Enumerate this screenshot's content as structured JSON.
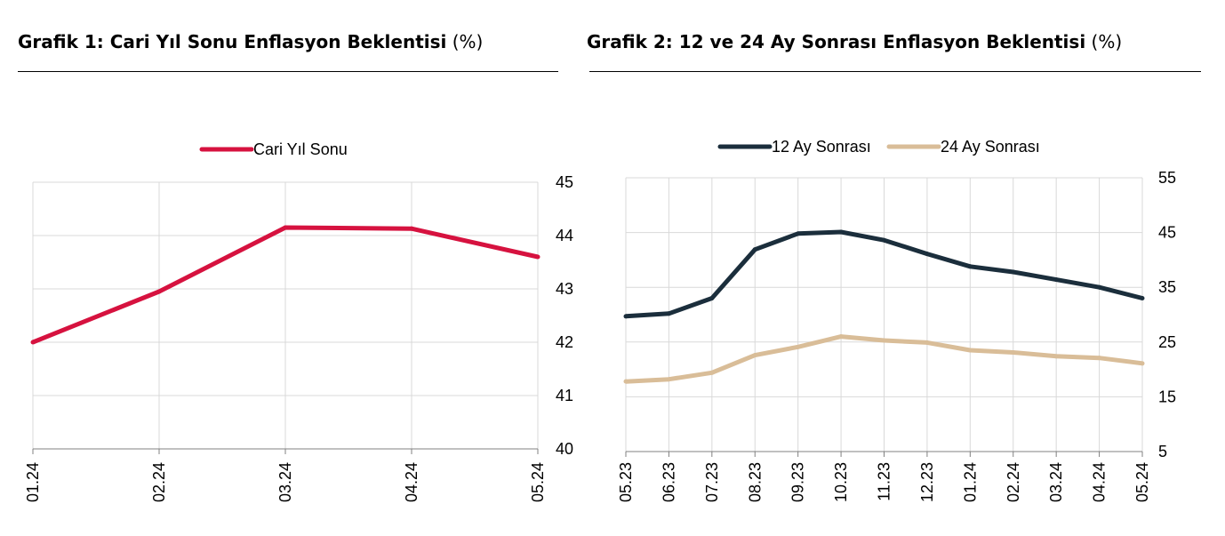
{
  "charts": [
    {
      "title_bold": "Grafik 1: Cari Yıl Sonu Enflasyon Beklentisi",
      "title_unit": "(%)",
      "chart_data": {
        "type": "line",
        "categories": [
          "01.24",
          "02.24",
          "03.24",
          "04.24",
          "05.24"
        ],
        "series": [
          {
            "name": "Cari Yıl Sonu",
            "color": "#d6123f",
            "values": [
              42.0,
              42.95,
              44.15,
              44.13,
              43.6
            ]
          }
        ],
        "ylim": [
          40,
          45
        ],
        "yticks": [
          "40",
          "41",
          "42",
          "43",
          "44",
          "45"
        ],
        "y_axis_side": "right",
        "grid": true,
        "legend": "top-center"
      }
    },
    {
      "title_bold": "Grafik 2: 12 ve 24 Ay Sonrası Enflasyon Beklentisi",
      "title_unit": "(%)",
      "chart_data": {
        "type": "line",
        "categories": [
          "05.23",
          "06.23",
          "07.23",
          "08.23",
          "09.23",
          "10.23",
          "11.23",
          "12.23",
          "01.24",
          "02.24",
          "03.24",
          "04.24",
          "05.24"
        ],
        "series": [
          {
            "name": "12 Ay Sonrası",
            "color": "#1b2e3c",
            "values": [
              29.7,
              30.2,
              33.0,
              41.9,
              44.8,
              45.1,
              43.6,
              41.1,
              38.8,
              37.8,
              36.4,
              35.0,
              33.0
            ]
          },
          {
            "name": "24 Ay Sonrası",
            "color": "#d9bd98",
            "values": [
              17.8,
              18.2,
              19.4,
              22.6,
              24.1,
              26.0,
              25.3,
              24.9,
              23.5,
              23.1,
              22.4,
              22.1,
              21.1
            ]
          }
        ],
        "ylim": [
          5,
          55
        ],
        "yticks": [
          "5",
          "15",
          "25",
          "35",
          "45",
          "55"
        ],
        "y_axis_side": "right",
        "grid": true,
        "legend": "top-center"
      }
    }
  ]
}
